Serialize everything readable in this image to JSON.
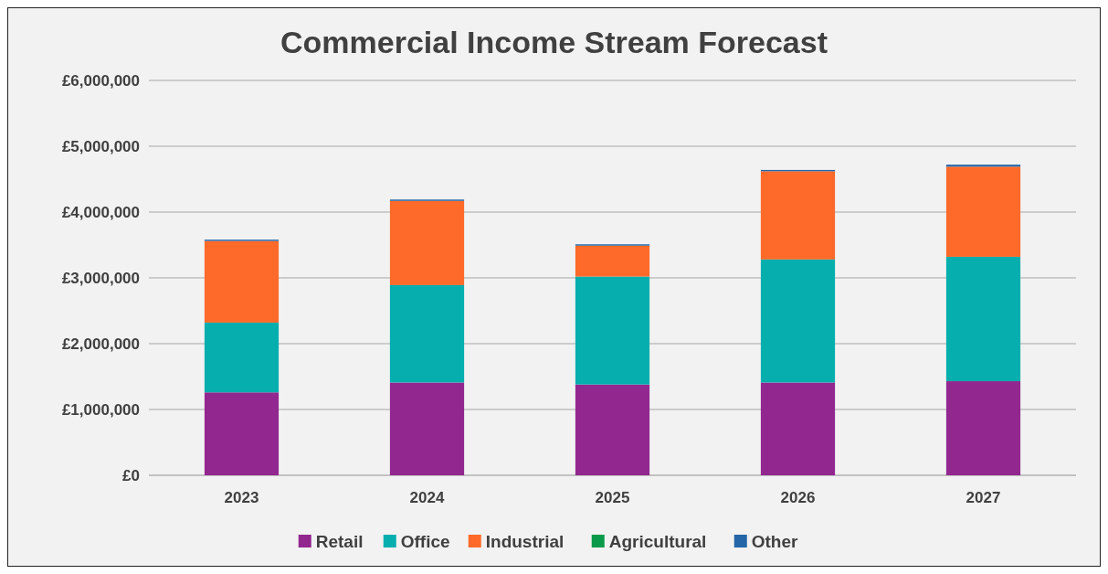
{
  "chart_data": {
    "type": "bar",
    "title": "Commercial Income Stream Forecast",
    "categories": [
      "2023",
      "2024",
      "2025",
      "2026",
      "2027"
    ],
    "stacked": true,
    "ylim": [
      0,
      6000000
    ],
    "yticks": [
      {
        "value": 0,
        "label": "£0"
      },
      {
        "value": 1000000,
        "label": "£1,000,000"
      },
      {
        "value": 2000000,
        "label": "£2,000,000"
      },
      {
        "value": 3000000,
        "label": "£3,000,000"
      },
      {
        "value": 4000000,
        "label": "£4,000,000"
      },
      {
        "value": 5000000,
        "label": "£5,000,000"
      },
      {
        "value": 6000000,
        "label": "£6,000,000"
      }
    ],
    "grid": "y",
    "legend": "bottom",
    "series": [
      {
        "name": "Retail",
        "color": "#92278f",
        "values": [
          1260000,
          1410000,
          1380000,
          1410000,
          1430000
        ]
      },
      {
        "name": "Office",
        "color": "#06aeae",
        "values": [
          1060000,
          1480000,
          1640000,
          1870000,
          1890000
        ]
      },
      {
        "name": "Industrial",
        "color": "#fd6a2a",
        "values": [
          1240000,
          1280000,
          470000,
          1340000,
          1370000
        ]
      },
      {
        "name": "Agricultural",
        "color": "#0a9a4a",
        "values": [
          0,
          0,
          0,
          0,
          0
        ]
      },
      {
        "name": "Other",
        "color": "#2466a8",
        "values": [
          20000,
          20000,
          20000,
          20000,
          30000
        ]
      }
    ]
  }
}
